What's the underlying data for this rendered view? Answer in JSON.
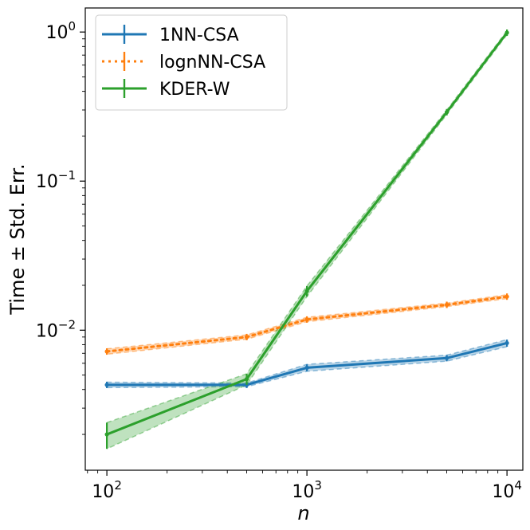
{
  "chart_data": {
    "type": "line",
    "xscale": "log",
    "yscale": "log",
    "xlabel": "n",
    "ylabel": "Time ± Std. Err.",
    "xlim": [
      78,
      12000
    ],
    "ylim": [
      0.00115,
      1.45
    ],
    "x_ticks": [
      {
        "value": 100,
        "base": "10",
        "exp": "2"
      },
      {
        "value": 1000,
        "base": "10",
        "exp": "3"
      },
      {
        "value": 10000,
        "base": "10",
        "exp": "4"
      }
    ],
    "y_ticks": [
      {
        "value": 0.01,
        "base": "10",
        "exp": "−2"
      },
      {
        "value": 0.1,
        "base": "10",
        "exp": "−1"
      },
      {
        "value": 1,
        "base": "10",
        "exp": "0"
      }
    ],
    "legend_position": "top-left",
    "series": [
      {
        "name": "1NN-CSA",
        "color": "#1f77b4",
        "line_style": "solid",
        "x": [
          100,
          500,
          1000,
          5000,
          10000
        ],
        "y": [
          0.0043,
          0.0043,
          0.0056,
          0.0065,
          0.0082
        ],
        "err": [
          0.00018,
          0.00012,
          0.0003,
          0.0003,
          0.00045
        ]
      },
      {
        "name": "lognNN-CSA",
        "color": "#ff7f0e",
        "line_style": "dotted",
        "x": [
          100,
          500,
          1000,
          5000,
          10000
        ],
        "y": [
          0.0072,
          0.009,
          0.0118,
          0.0148,
          0.0168
        ],
        "err": [
          0.0003,
          0.0003,
          0.0004,
          0.0004,
          0.0005
        ]
      },
      {
        "name": "KDER-W",
        "color": "#2ca02c",
        "line_style": "solid",
        "x": [
          100,
          500,
          1000,
          5000,
          10000
        ],
        "y": [
          0.002,
          0.0047,
          0.0183,
          0.29,
          0.99
        ],
        "err": [
          0.0004,
          0.0004,
          0.0015,
          0.01,
          0.03
        ]
      }
    ]
  }
}
